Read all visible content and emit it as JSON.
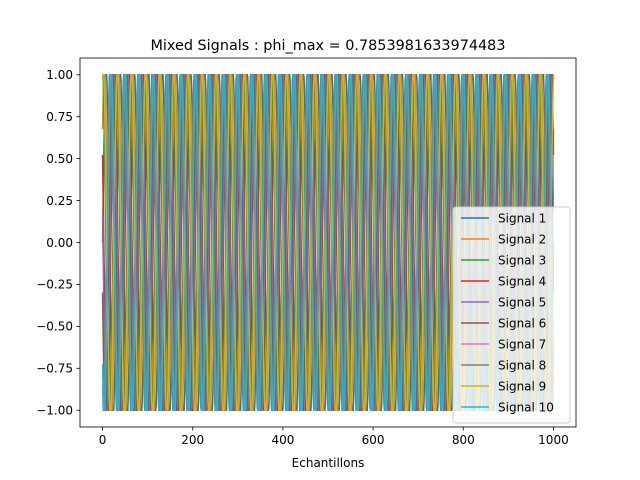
{
  "chart_data": {
    "type": "line",
    "title": "Mixed Signals : phi_max = 0.7853981633974483",
    "xlabel": "Echantillons",
    "ylabel": "",
    "xlim": [
      -50,
      1050
    ],
    "ylim": [
      -1.1,
      1.1
    ],
    "x_ticks": [
      0,
      200,
      400,
      600,
      800,
      1000
    ],
    "x_tick_labels": [
      "0",
      "200",
      "400",
      "600",
      "800",
      "1000"
    ],
    "y_ticks": [
      -1.0,
      -0.75,
      -0.5,
      -0.25,
      0.0,
      0.25,
      0.5,
      0.75,
      1.0
    ],
    "y_tick_labels": [
      "−1.00",
      "−0.75",
      "−0.50",
      "−0.25",
      "0.00",
      "0.25",
      "0.50",
      "0.75",
      "1.00"
    ],
    "grid": false,
    "legend_position": "lower-right",
    "x_range": [
      0,
      1000
    ],
    "cycles": 32,
    "series": [
      {
        "name": "Signal 1",
        "color": "#1f77b4",
        "amplitude": 1.0,
        "phase": 0.0
      },
      {
        "name": "Signal 2",
        "color": "#ff7f0e",
        "amplitude": 1.0,
        "phase": 0.12
      },
      {
        "name": "Signal 3",
        "color": "#2ca02c",
        "amplitude": 1.0,
        "phase": 0.26
      },
      {
        "name": "Signal 4",
        "color": "#d62728",
        "amplitude": 1.0,
        "phase": 0.41
      },
      {
        "name": "Signal 5",
        "color": "#9467bd",
        "amplitude": 1.0,
        "phase": 0.47
      },
      {
        "name": "Signal 6",
        "color": "#8c564b",
        "amplitude": 1.0,
        "phase": 0.55
      },
      {
        "name": "Signal 7",
        "color": "#e377c2",
        "amplitude": 1.0,
        "phase": 0.66
      },
      {
        "name": "Signal 8",
        "color": "#7f7f7f",
        "amplitude": 1.0,
        "phase": 0.72
      },
      {
        "name": "Signal 9",
        "color": "#bcbd22",
        "amplitude": 1.0,
        "phase": 0.2
      },
      {
        "name": "Signal 10",
        "color": "#17becf",
        "amplitude": 1.0,
        "phase": 0.63
      }
    ]
  }
}
